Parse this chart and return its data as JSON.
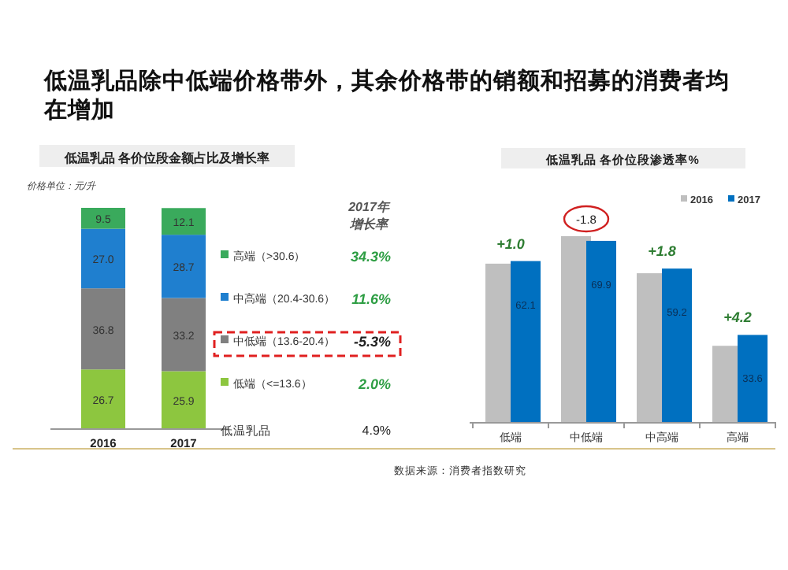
{
  "chart_data": [
    {
      "type": "bar",
      "title": "低温乳品除中低端价格带外，其余价格带的销额和招募的消费者均在增加",
      "subtitle": "低温乳品  各价位段金额占比及增长率",
      "categories": [
        "2016",
        "2017"
      ],
      "stacked": true,
      "legend": "right",
      "series": [
        {
          "name": "低端（<=13.6）",
          "color": "#8dc63f",
          "values": [
            26.7,
            25.9
          ],
          "value_labels": [
            "26.7",
            "25.9"
          ]
        },
        {
          "name": "中低端（13.6-20.4）",
          "color": "#808080",
          "values": [
            36.8,
            33.2
          ],
          "value_labels": [
            "36.8",
            "33.2"
          ]
        },
        {
          "name": "中高端（20.4-30.6）",
          "color": "#1f7fcf",
          "values": [
            27.0,
            28.7
          ],
          "value_labels": [
            "27.0",
            "28.7"
          ]
        },
        {
          "name": "高端（>30.6）",
          "color": "#3aaa5c",
          "values": [
            9.5,
            12.1
          ],
          "value_labels": [
            "9.5",
            "12.1"
          ]
        }
      ],
      "annotations": [
        "价格单位：元/升",
        "2017年",
        "增长率",
        "2.0%",
        "-5.3%",
        "11.6%",
        "34.3%",
        "低温乳品",
        "4.9%",
        "数据来源：消费者指数研究"
      ]
    },
    {
      "type": "bar",
      "title": "低温乳品  各价位段渗透率%",
      "categories": [
        "低端",
        "中低端",
        "中高端",
        "高端"
      ],
      "legend": "top right",
      "series": [
        {
          "name": "2016",
          "color": "#bfbfbf",
          "values": [
            61.1,
            71.7,
            57.4,
            29.4
          ]
        },
        {
          "name": "2017",
          "color": "#0070c0",
          "values": [
            62.1,
            69.9,
            59.2,
            33.6
          ],
          "value_labels": [
            "62.1",
            "69.9",
            "59.2",
            "33.6"
          ]
        }
      ],
      "annotations": [
        {
          "text": "+1.0",
          "x": "低端",
          "y": 62.1
        },
        {
          "text": "-1.8",
          "x": "中低端",
          "y": 71.7
        },
        {
          "text": "+1.8",
          "x": "中高端",
          "y": 59.2
        },
        {
          "text": "+4.2",
          "x": "高端",
          "y": 33.6
        }
      ]
    }
  ]
}
